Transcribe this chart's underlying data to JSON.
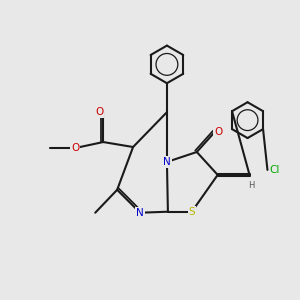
{
  "bg_color": "#e8e8e8",
  "bond_color": "#1a1a1a",
  "N_color": "#0000cc",
  "S_color": "#b8b800",
  "O_color": "#cc0000",
  "Cl_color": "#00aa00",
  "H_color": "#555555",
  "lw": 1.5,
  "fs": 7.5,
  "xlim": [
    0,
    10
  ],
  "ylim": [
    0,
    10
  ]
}
